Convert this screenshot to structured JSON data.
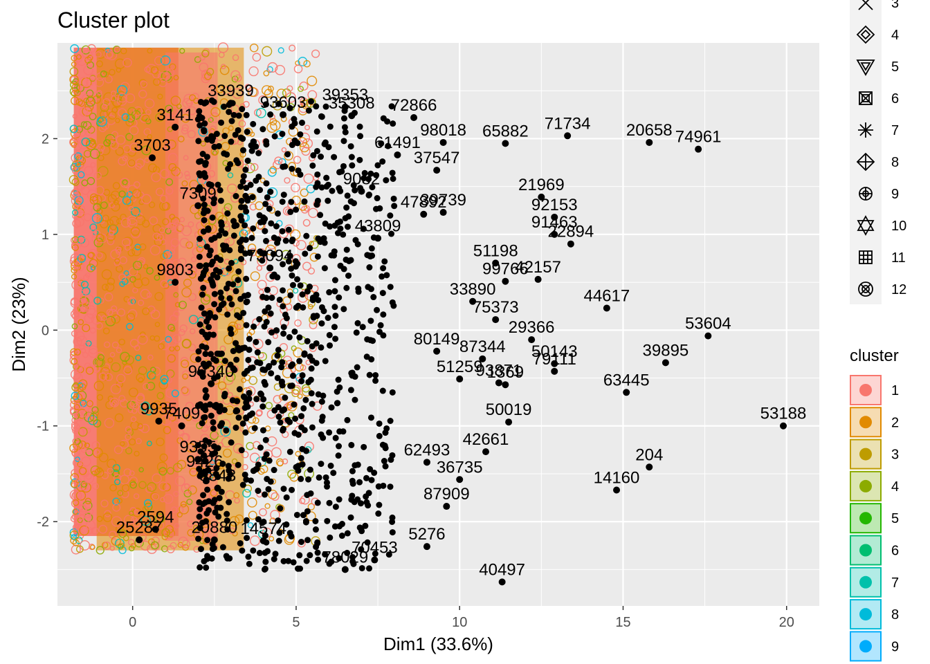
{
  "chart_data": {
    "type": "scatter",
    "title": "Cluster plot",
    "xlabel": "Dim1 (33.6%)",
    "ylabel": "Dim2 (23%)",
    "xlim": [
      -2.3,
      21.0
    ],
    "ylim": [
      -2.88,
      3.0
    ],
    "x_ticks": [
      0,
      5,
      10,
      15,
      20
    ],
    "y_ticks": [
      -2,
      -1,
      0,
      1,
      2
    ],
    "x_tick_labels": [
      "0",
      "5",
      "10",
      "15",
      "20"
    ],
    "y_tick_labels": [
      "-2",
      "-1",
      "0",
      "1",
      "2"
    ],
    "grid": true,
    "panel_background": "#ebebeb",
    "grid_color": "#ffffff",
    "point_color": "#000000",
    "cluster_colors": [
      "#F8766D",
      "#E18A00",
      "#BE9C00",
      "#8CAB00",
      "#24B700",
      "#00BE70",
      "#00C1AB",
      "#00BBDA",
      "#00ACFC"
    ],
    "labeled_points": [
      {
        "label": "53188",
        "x": 19.9,
        "y": -1.0
      },
      {
        "label": "74961",
        "x": 17.3,
        "y": 1.89
      },
      {
        "label": "20658",
        "x": 15.8,
        "y": 1.96
      },
      {
        "label": "53604",
        "x": 17.6,
        "y": -0.06
      },
      {
        "label": "39895",
        "x": 16.3,
        "y": -0.34
      },
      {
        "label": "63445",
        "x": 15.1,
        "y": -0.65
      },
      {
        "label": "204",
        "x": 15.8,
        "y": -1.43
      },
      {
        "label": "14160",
        "x": 14.8,
        "y": -1.67
      },
      {
        "label": "44617",
        "x": 14.5,
        "y": 0.23
      },
      {
        "label": "71734",
        "x": 13.3,
        "y": 2.03
      },
      {
        "label": "21969",
        "x": 12.5,
        "y": 1.39
      },
      {
        "label": "92153",
        "x": 12.9,
        "y": 1.18
      },
      {
        "label": "91463",
        "x": 12.9,
        "y": 1.0
      },
      {
        "label": "22894",
        "x": 13.4,
        "y": 0.9
      },
      {
        "label": "42157",
        "x": 12.4,
        "y": 0.53
      },
      {
        "label": "51198",
        "x": 11.1,
        "y": 0.7
      },
      {
        "label": "99766",
        "x": 11.4,
        "y": 0.51
      },
      {
        "label": "40497",
        "x": 11.3,
        "y": -2.63
      },
      {
        "label": "65882",
        "x": 11.4,
        "y": 1.95
      },
      {
        "label": "98018",
        "x": 9.5,
        "y": 1.96
      },
      {
        "label": "72866",
        "x": 8.6,
        "y": 2.22
      },
      {
        "label": "37547",
        "x": 9.3,
        "y": 1.67
      },
      {
        "label": "39739",
        "x": 9.5,
        "y": 1.23
      },
      {
        "label": "47892",
        "x": 8.9,
        "y": 1.21
      },
      {
        "label": "87909",
        "x": 9.6,
        "y": -1.84
      },
      {
        "label": "5276",
        "x": 9.0,
        "y": -2.26
      },
      {
        "label": "42661",
        "x": 10.8,
        "y": -1.27
      },
      {
        "label": "36735",
        "x": 10.0,
        "y": -1.56
      },
      {
        "label": "50019",
        "x": 11.5,
        "y": -0.96
      },
      {
        "label": "29366",
        "x": 12.2,
        "y": -0.1
      },
      {
        "label": "50143",
        "x": 12.9,
        "y": -0.35
      },
      {
        "label": "79111",
        "x": 12.9,
        "y": -0.43
      },
      {
        "label": "75373",
        "x": 11.1,
        "y": 0.11
      },
      {
        "label": "87344",
        "x": 10.7,
        "y": -0.3
      },
      {
        "label": "33890",
        "x": 10.4,
        "y": 0.3
      },
      {
        "label": "93871",
        "x": 11.2,
        "y": -0.55
      },
      {
        "label": "1369",
        "x": 11.4,
        "y": -0.57
      },
      {
        "label": "51259",
        "x": 10.0,
        "y": -0.51
      },
      {
        "label": "80149",
        "x": 9.3,
        "y": -0.22
      },
      {
        "label": "62493",
        "x": 9.0,
        "y": -1.38
      },
      {
        "label": "61491",
        "x": 8.1,
        "y": 1.83
      },
      {
        "label": "33939",
        "x": 3.0,
        "y": 2.37
      },
      {
        "label": "93603",
        "x": 4.6,
        "y": 2.25
      },
      {
        "label": "39353",
        "x": 6.5,
        "y": 2.33
      },
      {
        "label": "35308",
        "x": 6.7,
        "y": 2.24
      },
      {
        "label": "3141",
        "x": 1.3,
        "y": 2.12
      },
      {
        "label": "3703",
        "x": 0.6,
        "y": 1.8
      },
      {
        "label": "9082",
        "x": 7.0,
        "y": 1.45
      },
      {
        "label": "43809",
        "x": 7.5,
        "y": 0.96
      },
      {
        "label": "73094",
        "x": 4.2,
        "y": 0.65
      },
      {
        "label": "90340",
        "x": 2.4,
        "y": -0.56
      },
      {
        "label": "9935",
        "x": 0.8,
        "y": -0.95
      },
      {
        "label": "7409",
        "x": 1.5,
        "y": -1.0
      },
      {
        "label": "9355",
        "x": 2.0,
        "y": -1.35
      },
      {
        "label": "9426",
        "x": 2.2,
        "y": -1.5
      },
      {
        "label": "8843",
        "x": 2.6,
        "y": -1.65
      },
      {
        "label": "2594",
        "x": 0.7,
        "y": -2.08
      },
      {
        "label": "25287",
        "x": 0.2,
        "y": -2.19
      },
      {
        "label": "20880",
        "x": 2.5,
        "y": -2.19
      },
      {
        "label": "14574",
        "x": 4.0,
        "y": -2.2
      },
      {
        "label": "78029",
        "x": 6.5,
        "y": -2.5
      },
      {
        "label": "70453",
        "x": 7.4,
        "y": -2.4
      },
      {
        "label": "9803",
        "x": 1.3,
        "y": 0.5
      },
      {
        "label": "7309",
        "x": 2.0,
        "y": 1.3
      }
    ],
    "clusters_legend": {
      "title": "cluster",
      "shape_entries": [
        "3",
        "4",
        "5",
        "6",
        "7",
        "8",
        "9",
        "10",
        "11",
        "12"
      ],
      "color_entries": [
        "1",
        "2",
        "3",
        "4",
        "5",
        "6",
        "7",
        "8",
        "9"
      ]
    }
  }
}
